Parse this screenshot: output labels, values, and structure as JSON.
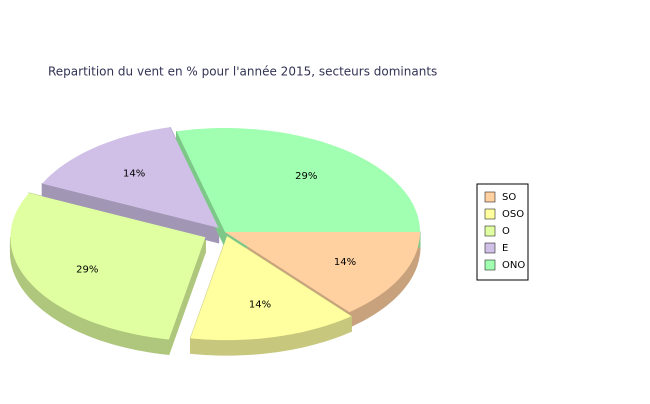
{
  "chart_data": {
    "type": "pie",
    "title": "Repartition du vent en % pour l'année 2015, secteurs dominants",
    "categories": [
      "SO",
      "OSO",
      "O",
      "E",
      "ONO"
    ],
    "values": [
      14,
      14,
      29,
      14,
      29
    ],
    "value_labels": [
      "14%",
      "14%",
      "29%",
      "14%",
      "29%"
    ],
    "colors": [
      "#ffd0a0",
      "#ffffa0",
      "#e0ffa0",
      "#d0c0e8",
      "#a0ffb0"
    ],
    "legend": "right"
  }
}
